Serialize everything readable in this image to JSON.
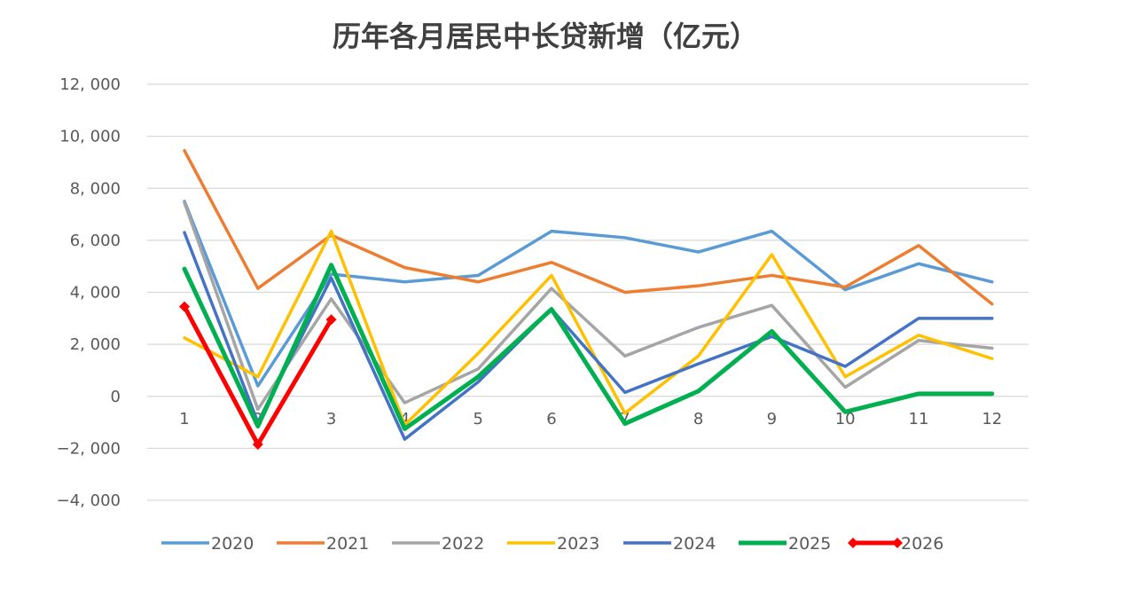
{
  "chart_data": {
    "type": "line",
    "title": "历年各月居民中长贷新增（亿元）",
    "xlabel": "",
    "ylabel": "",
    "categories": [
      "1",
      "2",
      "3",
      "4",
      "5",
      "6",
      "7",
      "8",
      "9",
      "10",
      "11",
      "12"
    ],
    "ylim": [
      -4000,
      12000
    ],
    "yticks": [
      12000,
      10000,
      8000,
      6000,
      4000,
      2000,
      0,
      -2000,
      -4000
    ],
    "ytick_labels": [
      "12, 000",
      "10, 000",
      "8, 000",
      "6, 000",
      "4, 000",
      "2, 000",
      "0",
      "−2, 000",
      "−4, 000"
    ],
    "grid": true,
    "legend_position": "bottom",
    "series": [
      {
        "name": "2020",
        "color": "#5b9bd5",
        "values": [
          7500,
          400,
          4700,
          4400,
          4650,
          6350,
          6100,
          5550,
          6350,
          4100,
          5100,
          4400
        ]
      },
      {
        "name": "2021",
        "color": "#ed7d31",
        "values": [
          9450,
          4150,
          6200,
          4950,
          4400,
          5150,
          4000,
          4250,
          4650,
          4200,
          5800,
          3550
        ]
      },
      {
        "name": "2022",
        "color": "#a5a5a5",
        "values": [
          7450,
          -500,
          3750,
          -250,
          1050,
          4150,
          1550,
          2650,
          3500,
          350,
          2150,
          1850
        ]
      },
      {
        "name": "2023",
        "color": "#ffc000",
        "values": [
          2250,
          750,
          6350,
          -1100,
          1650,
          4650,
          -650,
          1550,
          5450,
          750,
          2350,
          1450
        ]
      },
      {
        "name": "2024",
        "color": "#4472c4",
        "values": [
          6300,
          -1000,
          4550,
          -1650,
          550,
          3350,
          150,
          1250,
          2300,
          1150,
          3000,
          3000
        ]
      },
      {
        "name": "2025",
        "color": "#00b050",
        "values": [
          4900,
          -1150,
          5050,
          -1250,
          750,
          3350,
          -1050,
          200,
          2500,
          -600,
          100,
          100
        ]
      },
      {
        "name": "2026",
        "color": "#ff0000",
        "marker": "diamond",
        "values": [
          3450,
          -1850,
          2950,
          null,
          null,
          null,
          null,
          null,
          null,
          null,
          null,
          null
        ]
      }
    ]
  }
}
